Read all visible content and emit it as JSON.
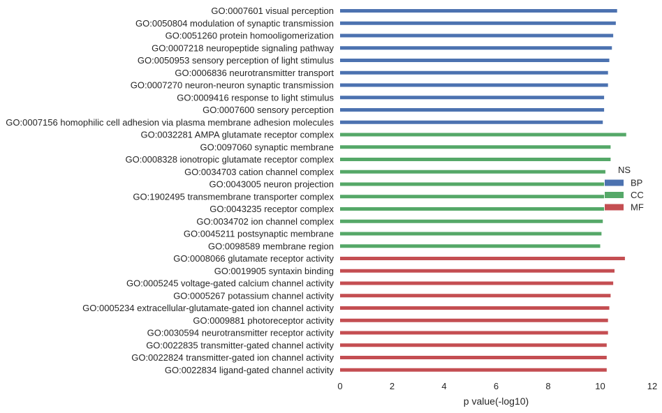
{
  "chart_data": {
    "type": "bar",
    "orientation": "horizontal",
    "xlabel": "p value(-log10)",
    "ylabel": "",
    "xlim": [
      0,
      12
    ],
    "xticks": [
      "0",
      "2",
      "4",
      "6",
      "8",
      "10",
      "12"
    ],
    "grid": false,
    "legend": {
      "title": "NS",
      "placement": "right",
      "entries": [
        {
          "name": "BP",
          "color": "#4c72b0"
        },
        {
          "name": "CC",
          "color": "#55a868"
        },
        {
          "name": "MF",
          "color": "#c44e52"
        }
      ]
    },
    "categories": [
      "GO:0007601 visual perception",
      "GO:0050804 modulation of synaptic transmission",
      "GO:0051260 protein homooligomerization",
      "GO:0007218 neuropeptide signaling pathway",
      "GO:0050953 sensory perception of light stimulus",
      "GO:0006836 neurotransmitter transport",
      "GO:0007270 neuron-neuron synaptic transmission",
      "GO:0009416 response to light stimulus",
      "GO:0007600 sensory perception",
      "GO:0007156 homophilic cell adhesion via plasma membrane adhesion molecules",
      "GO:0032281 AMPA glutamate receptor complex",
      "GO:0097060 synaptic membrane",
      "GO:0008328 ionotropic glutamate receptor complex",
      "GO:0034703 cation channel complex",
      "GO:0043005 neuron projection",
      "GO:1902495 transmembrane transporter complex",
      "GO:0043235 receptor complex",
      "GO:0034702 ion channel complex",
      "GO:0045211 postsynaptic membrane",
      "GO:0098589 membrane region",
      "GO:0008066 glutamate receptor activity",
      "GO:0019905 syntaxin binding",
      "GO:0005245 voltage-gated calcium channel activity",
      "GO:0005267 potassium channel activity",
      "GO:0005234 extracellular-glutamate-gated ion channel activity",
      "GO:0009881 photoreceptor activity",
      "GO:0030594 neurotransmitter receptor activity",
      "GO:0022835 transmitter-gated channel activity",
      "GO:0022824 transmitter-gated ion channel activity",
      "GO:0022834 ligand-gated channel activity"
    ],
    "groups": [
      "BP",
      "BP",
      "BP",
      "BP",
      "BP",
      "BP",
      "BP",
      "BP",
      "BP",
      "BP",
      "CC",
      "CC",
      "CC",
      "CC",
      "CC",
      "CC",
      "CC",
      "CC",
      "CC",
      "CC",
      "MF",
      "MF",
      "MF",
      "MF",
      "MF",
      "MF",
      "MF",
      "MF",
      "MF",
      "MF"
    ],
    "values": [
      10.65,
      10.6,
      10.5,
      10.45,
      10.35,
      10.3,
      10.3,
      10.15,
      10.15,
      10.1,
      11.0,
      10.4,
      10.4,
      10.2,
      10.15,
      10.15,
      10.15,
      10.1,
      10.05,
      10.0,
      10.95,
      10.55,
      10.5,
      10.4,
      10.35,
      10.3,
      10.3,
      10.25,
      10.25,
      10.25
    ]
  }
}
